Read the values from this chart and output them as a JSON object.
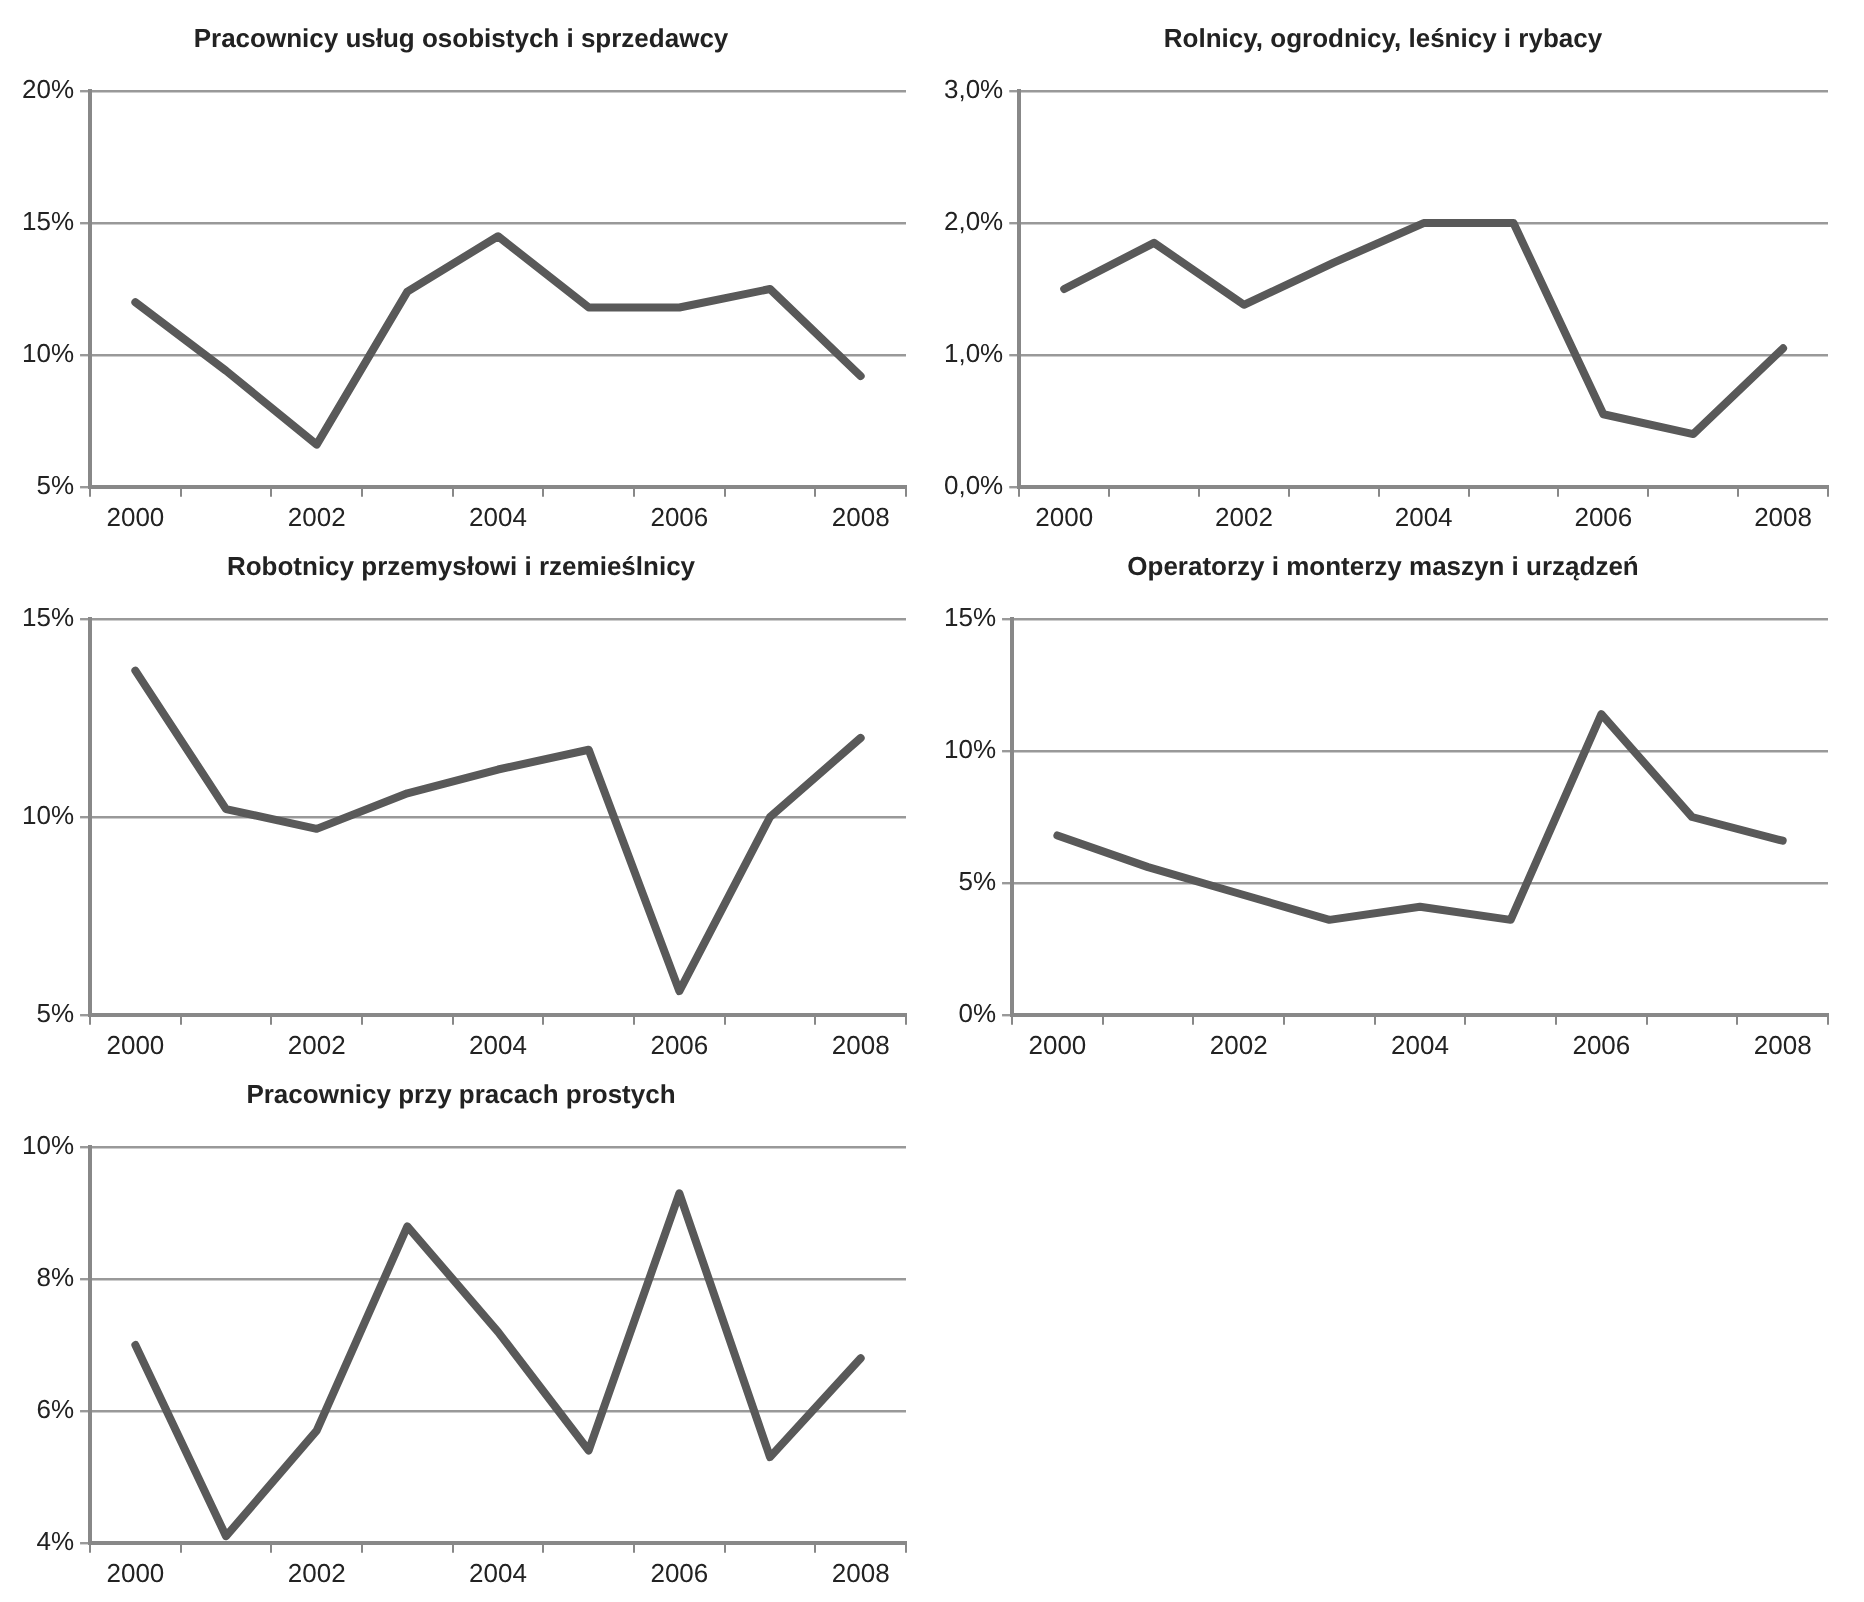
{
  "chart_data": [
    {
      "type": "line",
      "title": "Pracownicy usług osobistych i sprzedawcy",
      "categories": [
        "2000",
        null,
        "2002",
        null,
        "2004",
        null,
        "2006",
        null,
        "2008"
      ],
      "series": [
        {
          "color": "#595959",
          "values": [
            12.0,
            9.4,
            6.6,
            12.4,
            14.5,
            11.8,
            11.8,
            12.5,
            9.2
          ]
        }
      ],
      "ylim": [
        5,
        20
      ],
      "yticks": [
        {
          "value": 5,
          "label": "5%"
        },
        {
          "value": 10,
          "label": "10%"
        },
        {
          "value": 15,
          "label": "15%"
        },
        {
          "value": 20,
          "label": "20%"
        }
      ],
      "grid": "y",
      "legend": false,
      "marker": "none",
      "line_style": "solid"
    },
    {
      "type": "line",
      "title": "Rolnicy, ogrodnicy, leśnicy i rybacy",
      "categories": [
        "2000",
        null,
        "2002",
        null,
        "2004",
        null,
        "2006",
        null,
        "2008"
      ],
      "series": [
        {
          "color": "#595959",
          "values": [
            1.5,
            1.85,
            1.38,
            1.7,
            2.0,
            2.0,
            0.55,
            0.4,
            1.05
          ]
        }
      ],
      "ylim": [
        0,
        3
      ],
      "yticks": [
        {
          "value": 0,
          "label": "0,0%"
        },
        {
          "value": 1,
          "label": "1,0%"
        },
        {
          "value": 2,
          "label": "2,0%"
        },
        {
          "value": 3,
          "label": "3,0%"
        }
      ],
      "grid": "y",
      "legend": false,
      "marker": "none",
      "line_style": "solid"
    },
    {
      "type": "line",
      "title": "Robotnicy przemysłowi i rzemieślnicy",
      "categories": [
        "2000",
        null,
        "2002",
        null,
        "2004",
        null,
        "2006",
        null,
        "2008"
      ],
      "series": [
        {
          "color": "#595959",
          "values": [
            13.7,
            10.2,
            9.7,
            10.6,
            11.2,
            11.7,
            5.6,
            10.0,
            12.0
          ]
        }
      ],
      "ylim": [
        5,
        15
      ],
      "yticks": [
        {
          "value": 5,
          "label": "5%"
        },
        {
          "value": 10,
          "label": "10%"
        },
        {
          "value": 15,
          "label": "15%"
        }
      ],
      "grid": "y",
      "legend": false,
      "marker": "none",
      "line_style": "solid"
    },
    {
      "type": "line",
      "title": "Operatorzy i monterzy maszyn i urządzeń",
      "categories": [
        "2000",
        null,
        "2002",
        null,
        "2004",
        null,
        "2006",
        null,
        "2008"
      ],
      "series": [
        {
          "color": "#595959",
          "values": [
            6.8,
            5.6,
            4.6,
            3.6,
            4.1,
            3.6,
            11.4,
            7.5,
            6.6
          ]
        }
      ],
      "ylim": [
        0,
        15
      ],
      "yticks": [
        {
          "value": 0,
          "label": "0%"
        },
        {
          "value": 5,
          "label": "5%"
        },
        {
          "value": 10,
          "label": "10%"
        },
        {
          "value": 15,
          "label": "15%"
        }
      ],
      "grid": "y",
      "legend": false,
      "marker": "none",
      "line_style": "solid"
    },
    {
      "type": "line",
      "title": "Pracownicy przy pracach prostych",
      "categories": [
        "2000",
        null,
        "2002",
        null,
        "2004",
        null,
        "2006",
        null,
        "2008"
      ],
      "series": [
        {
          "color": "#595959",
          "values": [
            7.0,
            4.1,
            5.7,
            8.8,
            7.2,
            5.4,
            9.3,
            5.3,
            6.8
          ]
        }
      ],
      "ylim": [
        4,
        10
      ],
      "yticks": [
        {
          "value": 4,
          "label": "4%"
        },
        {
          "value": 6,
          "label": "6%"
        },
        {
          "value": 8,
          "label": "8%"
        },
        {
          "value": 10,
          "label": "10%"
        }
      ],
      "grid": "y",
      "legend": false,
      "marker": "none",
      "line_style": "solid"
    }
  ]
}
